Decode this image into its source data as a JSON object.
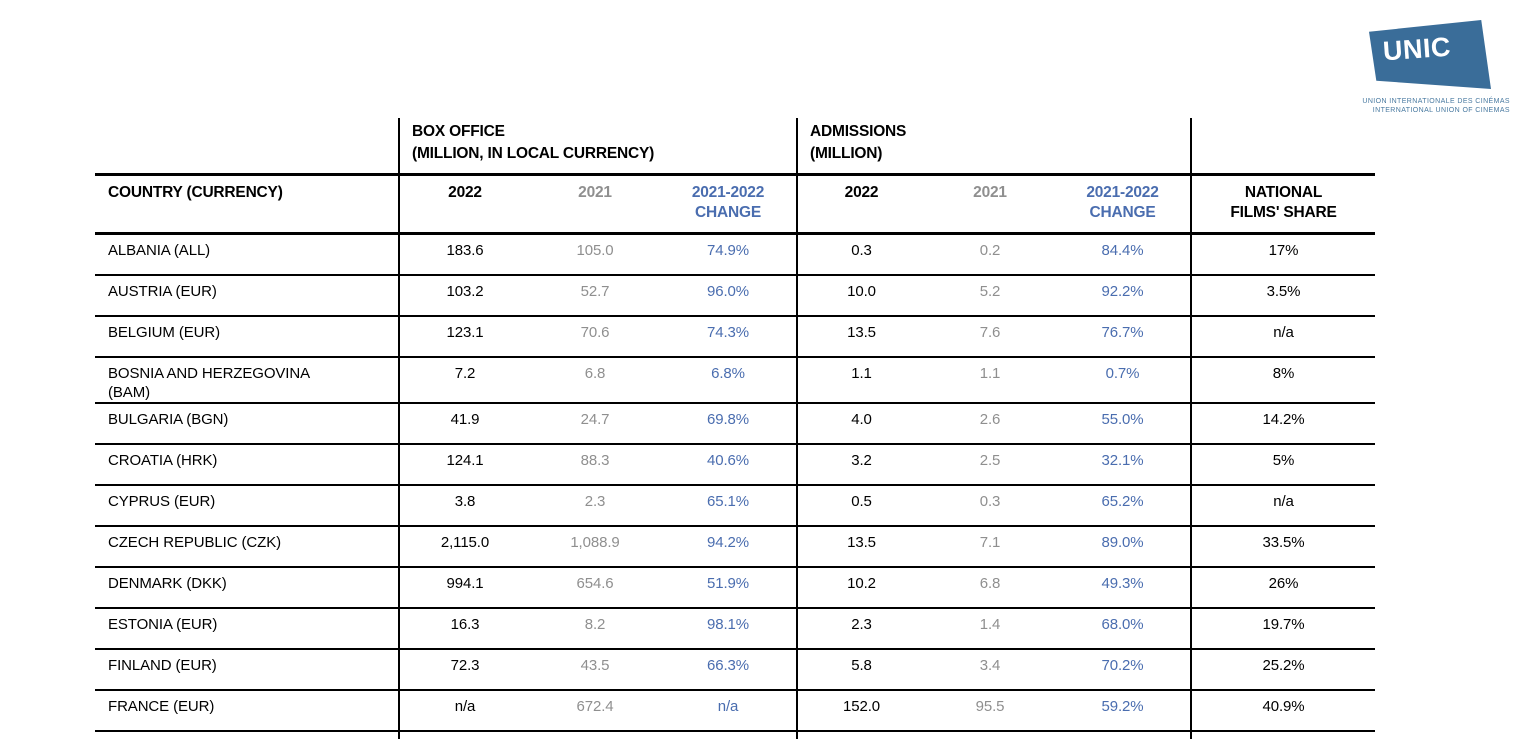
{
  "colors": {
    "accent_blue": "#4a6daf",
    "muted_gray": "#8f8f8f",
    "logo_blue": "#3a6d99",
    "line_black": "#000000"
  },
  "logo": {
    "text": "UNIC",
    "subtitle_line1": "UNION INTERNATIONALE DES CINÉMAS",
    "subtitle_line2": "INTERNATIONAL UNION OF CINEMAS"
  },
  "table": {
    "group_headers": {
      "box_office_line1": "BOX OFFICE",
      "box_office_line2": "(MILLION, IN LOCAL CURRENCY)",
      "admissions_line1": "ADMISSIONS",
      "admissions_line2": "(MILLION)"
    },
    "column_headers": {
      "country": "COUNTRY (CURRENCY)",
      "y2022": "2022",
      "y2021": "2021",
      "change_line1": "2021-2022",
      "change_line2": "CHANGE",
      "share_line1": "NATIONAL",
      "share_line2": "FILMS' SHARE"
    },
    "rows": [
      {
        "country": "ALBANIA (ALL)",
        "bo_2022": "183.6",
        "bo_2021": "105.0",
        "bo_change": "74.9%",
        "ad_2022": "0.3",
        "ad_2021": "0.2",
        "ad_change": "84.4%",
        "share": "17%"
      },
      {
        "country": "AUSTRIA (EUR)",
        "bo_2022": "103.2",
        "bo_2021": "52.7",
        "bo_change": "96.0%",
        "ad_2022": "10.0",
        "ad_2021": "5.2",
        "ad_change": "92.2%",
        "share": "3.5%"
      },
      {
        "country": "BELGIUM (EUR)",
        "bo_2022": "123.1",
        "bo_2021": "70.6",
        "bo_change": "74.3%",
        "ad_2022": "13.5",
        "ad_2021": "7.6",
        "ad_change": "76.7%",
        "share": "n/a"
      },
      {
        "country": "BOSNIA AND HERZEGOVINA (BAM)",
        "bo_2022": "7.2",
        "bo_2021": "6.8",
        "bo_change": "6.8%",
        "ad_2022": "1.1",
        "ad_2021": "1.1",
        "ad_change": "0.7%",
        "share": "8%"
      },
      {
        "country": "BULGARIA (BGN)",
        "bo_2022": "41.9",
        "bo_2021": "24.7",
        "bo_change": "69.8%",
        "ad_2022": "4.0",
        "ad_2021": "2.6",
        "ad_change": "55.0%",
        "share": "14.2%"
      },
      {
        "country": "CROATIA (HRK)",
        "bo_2022": "124.1",
        "bo_2021": "88.3",
        "bo_change": "40.6%",
        "ad_2022": "3.2",
        "ad_2021": "2.5",
        "ad_change": "32.1%",
        "share": "5%"
      },
      {
        "country": "CYPRUS (EUR)",
        "bo_2022": "3.8",
        "bo_2021": "2.3",
        "bo_change": "65.1%",
        "ad_2022": "0.5",
        "ad_2021": "0.3",
        "ad_change": "65.2%",
        "share": "n/a"
      },
      {
        "country": "CZECH REPUBLIC (CZK)",
        "bo_2022": "2,115.0",
        "bo_2021": "1,088.9",
        "bo_change": "94.2%",
        "ad_2022": "13.5",
        "ad_2021": "7.1",
        "ad_change": "89.0%",
        "share": "33.5%"
      },
      {
        "country": "DENMARK (DKK)",
        "bo_2022": "994.1",
        "bo_2021": "654.6",
        "bo_change": "51.9%",
        "ad_2022": "10.2",
        "ad_2021": "6.8",
        "ad_change": "49.3%",
        "share": "26%"
      },
      {
        "country": "ESTONIA (EUR)",
        "bo_2022": "16.3",
        "bo_2021": "8.2",
        "bo_change": "98.1%",
        "ad_2022": "2.3",
        "ad_2021": "1.4",
        "ad_change": "68.0%",
        "share": "19.7%"
      },
      {
        "country": "FINLAND (EUR)",
        "bo_2022": "72.3",
        "bo_2021": "43.5",
        "bo_change": "66.3%",
        "ad_2022": "5.8",
        "ad_2021": "3.4",
        "ad_change": "70.2%",
        "share": "25.2%"
      },
      {
        "country": "FRANCE (EUR)",
        "bo_2022": "n/a",
        "bo_2021": "672.4",
        "bo_change": "n/a",
        "ad_2022": "152.0",
        "ad_2021": "95.5",
        "ad_change": "59.2%",
        "share": "40.9%"
      }
    ]
  }
}
